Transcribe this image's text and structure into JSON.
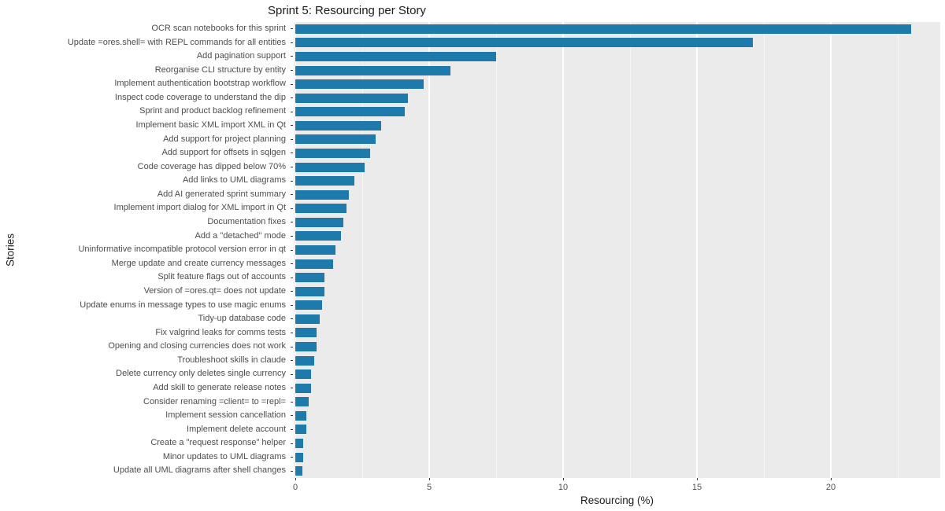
{
  "chart_data": {
    "type": "bar",
    "orientation": "horizontal",
    "title": "Sprint 5: Resourcing per Story",
    "xlabel": "Resourcing (%)",
    "ylabel": "Stories",
    "xlim": [
      0,
      24
    ],
    "x_ticks": [
      0,
      5,
      10,
      15,
      20
    ],
    "x_minor_ticks": [
      2.5,
      7.5,
      12.5,
      17.5,
      22.5
    ],
    "grid": "on",
    "legend": "none",
    "panel_bg": "#EBEBEB",
    "bar_color": "#1D7AAA",
    "categories": [
      "OCR scan notebooks for this sprint",
      "Update =ores.shell= with REPL commands for all entities",
      "Add pagination support",
      "Reorganise CLI structure by entity",
      "Implement authentication bootstrap workflow",
      "Inspect code coverage to understand the dip",
      "Sprint and product backlog refinement",
      "Implement basic XML import XML in Qt",
      "Add support for project planning",
      "Add support for offsets in sqlgen",
      "Code coverage has dipped below 70%",
      "Add links to UML diagrams",
      "Add AI generated sprint summary",
      "Implement import dialog for XML import in Qt",
      "Documentation fixes",
      "Add a \"detached\" mode",
      "Uninformative incompatible protocol version error in qt",
      "Merge update and create currency messages",
      "Split feature flags out of accounts",
      "Version of =ores.qt= does not update",
      "Update enums in message types to use magic enums",
      "Tidy-up database code",
      "Fix valgrind leaks for comms tests",
      "Opening and closing currencies does not work",
      "Troubleshoot skills in claude",
      "Delete currency only deletes single currency",
      "Add skill to generate release notes",
      "Consider renaming =client= to =repl=",
      "Implement session cancellation",
      "Implement delete account",
      "Create a \"request response\" helper",
      "Minor updates to UML diagrams",
      "Update all UML diagrams after shell changes"
    ],
    "values": [
      23.0,
      17.1,
      7.5,
      5.8,
      4.8,
      4.2,
      4.1,
      3.2,
      3.0,
      2.8,
      2.6,
      2.2,
      2.0,
      1.9,
      1.8,
      1.7,
      1.5,
      1.4,
      1.1,
      1.1,
      1.0,
      0.9,
      0.8,
      0.8,
      0.7,
      0.6,
      0.6,
      0.5,
      0.4,
      0.4,
      0.3,
      0.3,
      0.25
    ]
  }
}
